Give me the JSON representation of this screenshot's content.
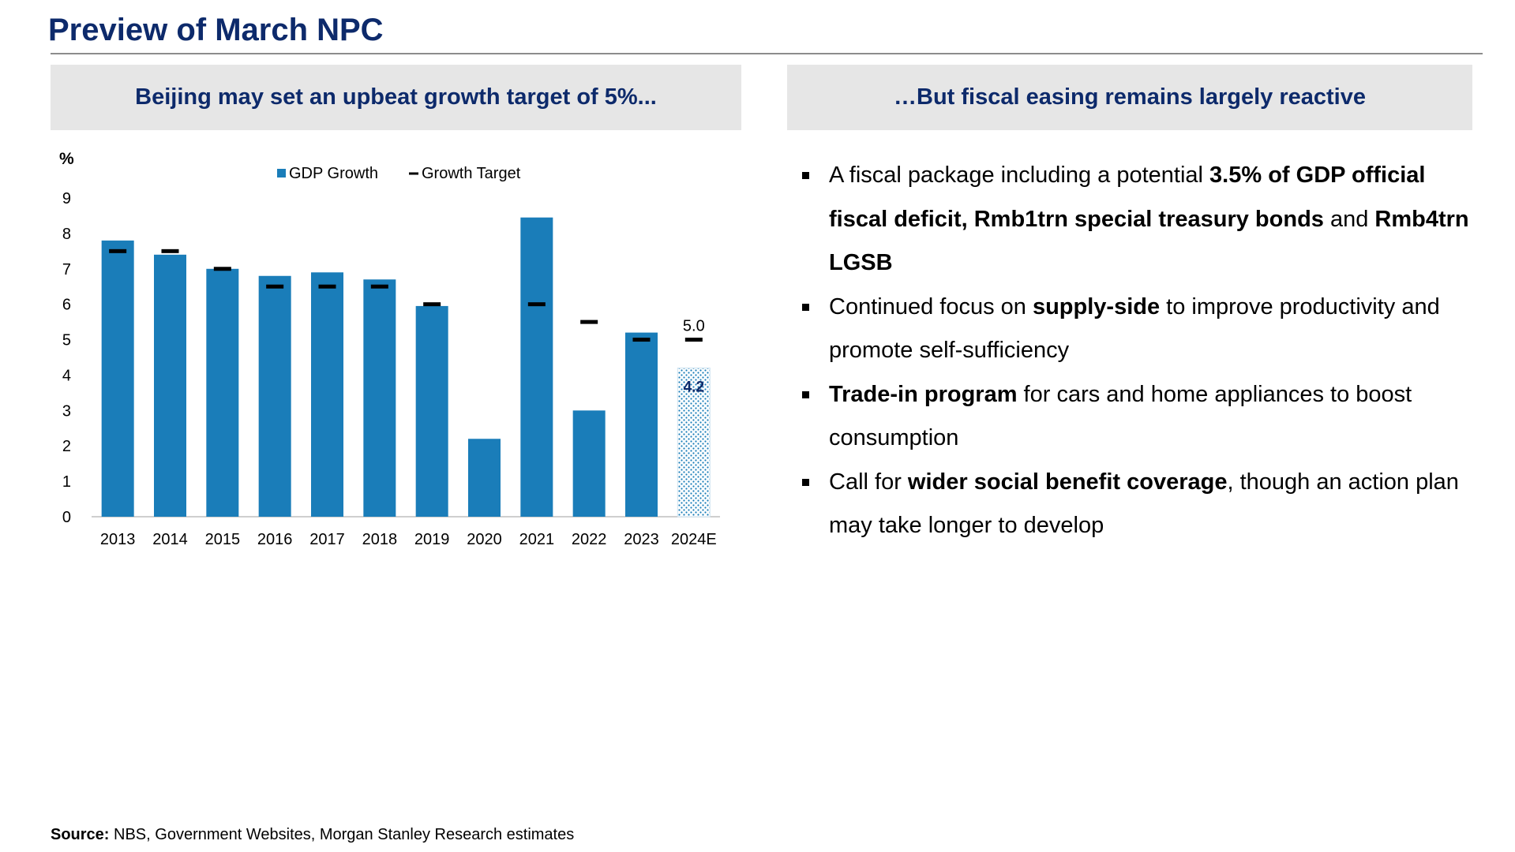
{
  "title": "Preview of March NPC",
  "left_panel": {
    "header": "Beijing may set an upbeat growth target of 5%..."
  },
  "right_panel": {
    "header": "…But fiscal easing remains largely reactive",
    "bullets": [
      {
        "segments": [
          {
            "text": "A fiscal package including a potential ",
            "bold": false
          },
          {
            "text": "3.5% of GDP official fiscal deficit, Rmb1trn special treasury bonds",
            "bold": true
          },
          {
            "text": " and ",
            "bold": false
          },
          {
            "text": "Rmb4trn LGSB",
            "bold": true
          }
        ]
      },
      {
        "segments": [
          {
            "text": "Continued focus on ",
            "bold": false
          },
          {
            "text": "supply-side",
            "bold": true
          },
          {
            "text": " to improve productivity and promote self-sufficiency",
            "bold": false
          }
        ]
      },
      {
        "segments": [
          {
            "text": "Trade-in program",
            "bold": true
          },
          {
            "text": " for cars and home appliances to boost consumption",
            "bold": false
          }
        ]
      },
      {
        "segments": [
          {
            "text": "Call for ",
            "bold": false
          },
          {
            "text": "wider social benefit coverage",
            "bold": true
          },
          {
            "text": ", though an action plan may take longer to develop",
            "bold": false
          }
        ]
      }
    ]
  },
  "source": {
    "label": "Source:",
    "text": " NBS, Government Websites, Morgan Stanley Research estimates"
  },
  "colors": {
    "title": "#0d2a6b",
    "bar": "#1a7db9",
    "target": "#000000",
    "estimate_label": "#0d2a6b"
  },
  "chart_data": {
    "type": "bar",
    "ylabel": "%",
    "ylim": [
      0,
      9
    ],
    "yticks": [
      0,
      1,
      2,
      3,
      4,
      5,
      6,
      7,
      8,
      9
    ],
    "categories": [
      "2013",
      "2014",
      "2015",
      "2016",
      "2017",
      "2018",
      "2019",
      "2020",
      "2021",
      "2022",
      "2023",
      "2024E"
    ],
    "legend_position": "top",
    "series": [
      {
        "name": "GDP Growth",
        "kind": "bar",
        "values": [
          7.8,
          7.4,
          7.0,
          6.8,
          6.9,
          6.7,
          5.95,
          2.2,
          8.45,
          3.0,
          5.2,
          4.2
        ],
        "estimate_index": 11
      },
      {
        "name": "Growth Target",
        "kind": "marker",
        "values": [
          7.5,
          7.5,
          7.0,
          6.5,
          6.5,
          6.5,
          6.0,
          null,
          6.0,
          5.5,
          5.0,
          5.0
        ]
      }
    ],
    "data_labels": [
      {
        "category": "2024E",
        "text": "5.0"
      },
      {
        "category": "2024E",
        "text": "4.2"
      }
    ]
  }
}
